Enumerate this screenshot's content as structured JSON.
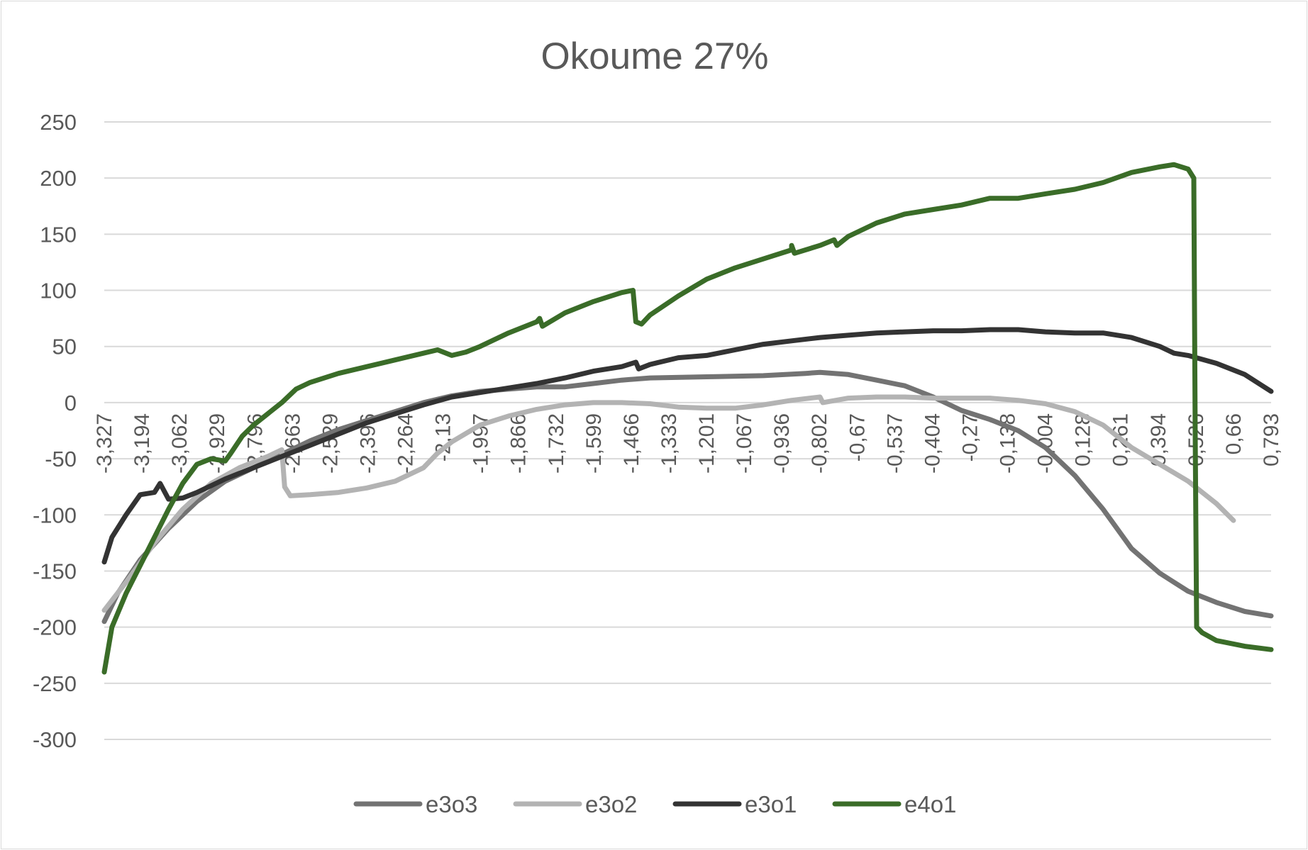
{
  "chart_data": {
    "type": "line",
    "title": "Okoume 27%",
    "xlabel": "",
    "ylabel": "",
    "ylim": [
      -300,
      250
    ],
    "y_ticks": [
      250,
      200,
      150,
      100,
      50,
      0,
      -50,
      -100,
      -150,
      -200,
      -250,
      -300
    ],
    "y_tick_labels": [
      "250",
      "200",
      "150",
      "100",
      "50",
      "0",
      "-50",
      "-100",
      "-150",
      "-200",
      "-250",
      "-300"
    ],
    "xlim": [
      -3.327,
      0.793
    ],
    "x_tick_labels": [
      "-3,327",
      "-3,194",
      "-3,062",
      "-2,929",
      "-2,796",
      "-2,663",
      "-2,529",
      "-2,396",
      "-2,264",
      "-2,13",
      "-1,997",
      "-1,866",
      "-1,732",
      "-1,599",
      "-1,466",
      "-1,333",
      "-1,201",
      "-1,067",
      "-0,936",
      "-0,802",
      "-0,67",
      "-0,537",
      "-0,404",
      "-0,27",
      "-0,138",
      "-0,004",
      "0,128",
      "0,261",
      "0,394",
      "0,526",
      "0,66",
      "0,793"
    ],
    "legend_position": "bottom",
    "grid": true,
    "series": [
      {
        "name": "e3o3",
        "color": "#737373",
        "x": [
          -3.327,
          -3.28,
          -3.2,
          -3.1,
          -3.0,
          -2.9,
          -2.8,
          -2.7,
          -2.6,
          -2.5,
          -2.4,
          -2.3,
          -2.2,
          -2.1,
          -2.0,
          -1.9,
          -1.8,
          -1.7,
          -1.6,
          -1.5,
          -1.4,
          -1.2,
          -1.0,
          -0.85,
          -0.8,
          -0.7,
          -0.6,
          -0.5,
          -0.4,
          -0.3,
          -0.2,
          -0.1,
          -0.004,
          0.1,
          0.2,
          0.3,
          0.4,
          0.5,
          0.6,
          0.7,
          0.793
        ],
        "y": [
          -195,
          -170,
          -140,
          -112,
          -88,
          -70,
          -58,
          -46,
          -34,
          -24,
          -16,
          -8,
          0,
          6,
          10,
          12,
          14,
          14,
          17,
          20,
          22,
          23,
          24,
          26,
          27,
          25,
          20,
          15,
          5,
          -7,
          -15,
          -25,
          -40,
          -65,
          -95,
          -130,
          -152,
          -168,
          -178,
          -186,
          -190
        ]
      },
      {
        "name": "e3o2",
        "color": "#b3b3b3",
        "x": [
          -3.327,
          -3.25,
          -3.15,
          -3.05,
          -2.95,
          -2.85,
          -2.75,
          -2.7,
          -2.69,
          -2.67,
          -2.6,
          -2.5,
          -2.4,
          -2.3,
          -2.2,
          -2.15,
          -2.1,
          -2.0,
          -1.9,
          -1.8,
          -1.7,
          -1.6,
          -1.5,
          -1.4,
          -1.3,
          -1.2,
          -1.1,
          -1.0,
          -0.9,
          -0.8,
          -0.79,
          -0.7,
          -0.6,
          -0.5,
          -0.4,
          -0.3,
          -0.2,
          -0.1,
          -0.004,
          0.1,
          0.2,
          0.3,
          0.4,
          0.5,
          0.6,
          0.66
        ],
        "y": [
          -185,
          -160,
          -125,
          -95,
          -72,
          -58,
          -48,
          -42,
          -75,
          -83,
          -82,
          -80,
          -76,
          -70,
          -58,
          -45,
          -35,
          -20,
          -12,
          -6,
          -2,
          0,
          0,
          -1,
          -4,
          -5,
          -5,
          -2,
          2,
          5,
          0,
          4,
          5,
          5,
          4,
          4,
          4,
          2,
          -1,
          -8,
          -20,
          -40,
          -55,
          -70,
          -90,
          -105
        ]
      },
      {
        "name": "e3o1",
        "color": "#333333",
        "x": [
          -3.327,
          -3.3,
          -3.25,
          -3.2,
          -3.15,
          -3.13,
          -3.1,
          -3.05,
          -3.0,
          -2.9,
          -2.8,
          -2.7,
          -2.6,
          -2.5,
          -2.4,
          -2.3,
          -2.2,
          -2.1,
          -2.0,
          -1.9,
          -1.8,
          -1.7,
          -1.6,
          -1.5,
          -1.45,
          -1.44,
          -1.4,
          -1.3,
          -1.2,
          -1.1,
          -1.0,
          -0.9,
          -0.8,
          -0.7,
          -0.6,
          -0.5,
          -0.4,
          -0.3,
          -0.2,
          -0.1,
          -0.004,
          0.1,
          0.2,
          0.3,
          0.4,
          0.45,
          0.5,
          0.6,
          0.7,
          0.793
        ],
        "y": [
          -142,
          -120,
          -100,
          -82,
          -80,
          -72,
          -86,
          -85,
          -80,
          -68,
          -58,
          -48,
          -38,
          -28,
          -18,
          -10,
          -2,
          5,
          9,
          13,
          17,
          22,
          28,
          32,
          36,
          30,
          34,
          40,
          42,
          47,
          52,
          55,
          58,
          60,
          62,
          63,
          64,
          64,
          65,
          65,
          63,
          62,
          62,
          58,
          50,
          44,
          42,
          35,
          25,
          10
        ]
      },
      {
        "name": "e4o1",
        "color": "#3a6c28",
        "x": [
          -3.327,
          -3.3,
          -3.25,
          -3.2,
          -3.15,
          -3.1,
          -3.05,
          -3.0,
          -2.95,
          -2.9,
          -2.88,
          -2.84,
          -2.8,
          -2.75,
          -2.7,
          -2.65,
          -2.6,
          -2.5,
          -2.4,
          -2.3,
          -2.2,
          -2.15,
          -2.1,
          -2.05,
          -2.0,
          -1.9,
          -1.8,
          -1.79,
          -1.78,
          -1.7,
          -1.6,
          -1.5,
          -1.46,
          -1.45,
          -1.43,
          -1.4,
          -1.3,
          -1.2,
          -1.1,
          -1.0,
          -0.9,
          -0.9,
          -0.89,
          -0.8,
          -0.75,
          -0.74,
          -0.7,
          -0.6,
          -0.5,
          -0.4,
          -0.3,
          -0.2,
          -0.1,
          -0.004,
          0.1,
          0.2,
          0.3,
          0.4,
          0.45,
          0.5,
          0.52,
          0.525,
          0.53,
          0.55,
          0.6,
          0.7,
          0.793
        ],
        "y": [
          -240,
          -200,
          -170,
          -145,
          -120,
          -95,
          -72,
          -55,
          -50,
          -52,
          -45,
          -30,
          -20,
          -10,
          0,
          12,
          18,
          26,
          32,
          38,
          44,
          47,
          42,
          45,
          50,
          62,
          72,
          75,
          68,
          80,
          90,
          98,
          100,
          72,
          70,
          78,
          95,
          110,
          120,
          128,
          136,
          140,
          133,
          140,
          145,
          140,
          148,
          160,
          168,
          172,
          176,
          182,
          182,
          186,
          190,
          196,
          205,
          210,
          212,
          208,
          200,
          -30,
          -200,
          -205,
          -212,
          -217,
          -220
        ]
      }
    ]
  }
}
